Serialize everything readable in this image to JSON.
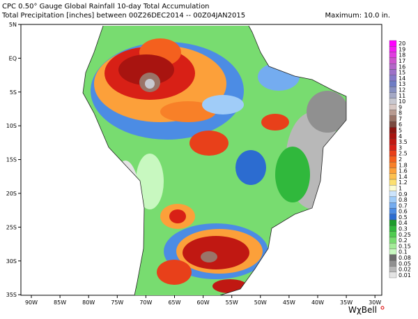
{
  "header": {
    "line1": "CPC 0.50° Gauge Global Rainfall 10-day Total Accumulation",
    "line2": "Total Precipitation [inches] between 00Z26DEC2014 -- 00Z04JAN2015",
    "maximum": "Maximum:  10.0 in."
  },
  "axes": {
    "lat_labels": [
      "5N",
      "EQ",
      "5S",
      "10S",
      "15S",
      "20S",
      "25S",
      "30S",
      "35S"
    ],
    "lon_labels": [
      "90W",
      "85W",
      "80W",
      "75W",
      "70W",
      "65W",
      "60W",
      "55W",
      "50W",
      "45W",
      "40W",
      "35W",
      "30W"
    ]
  },
  "colorbar": [
    {
      "label": "20",
      "color": "#ff00ff"
    },
    {
      "label": "19",
      "color": "#f21ef2"
    },
    {
      "label": "18",
      "color": "#e03ce0"
    },
    {
      "label": "17",
      "color": "#cc55cc"
    },
    {
      "label": "16",
      "color": "#b466c8"
    },
    {
      "label": "15",
      "color": "#9c70c8"
    },
    {
      "label": "14",
      "color": "#8478c8"
    },
    {
      "label": "13",
      "color": "#6e7cc4"
    },
    {
      "label": "12",
      "color": "#8890c0"
    },
    {
      "label": "11",
      "color": "#a4a8c4"
    },
    {
      "label": "10",
      "color": "#c8c8d0"
    },
    {
      "label": "9",
      "color": "#d8c8c4"
    },
    {
      "label": "8",
      "color": "#b89a90"
    },
    {
      "label": "7",
      "color": "#9a7468"
    },
    {
      "label": "6",
      "color": "#7a4a40"
    },
    {
      "label": "5",
      "color": "#8c1410"
    },
    {
      "label": "4",
      "color": "#a81410"
    },
    {
      "label": "3.5",
      "color": "#c01812"
    },
    {
      "label": "3",
      "color": "#d82016"
    },
    {
      "label": "2.5",
      "color": "#e8401a"
    },
    {
      "label": "2",
      "color": "#f4601e"
    },
    {
      "label": "1.8",
      "color": "#f88028"
    },
    {
      "label": "1.6",
      "color": "#fca03a"
    },
    {
      "label": "1.4",
      "color": "#fcc050"
    },
    {
      "label": "1.2",
      "color": "#fce070"
    },
    {
      "label": "1",
      "color": "#fcfcd0"
    },
    {
      "label": "0.9",
      "color": "#cce4fc"
    },
    {
      "label": "0.8",
      "color": "#a0ccf8"
    },
    {
      "label": "0.7",
      "color": "#74acf0"
    },
    {
      "label": "0.6",
      "color": "#4c8ce4"
    },
    {
      "label": "0.5",
      "color": "#2c6cd0"
    },
    {
      "label": "0.4",
      "color": "#1c9c2c"
    },
    {
      "label": "0.3",
      "color": "#30b83c"
    },
    {
      "label": "0.25",
      "color": "#50cc50"
    },
    {
      "label": "0.2",
      "color": "#78dc70"
    },
    {
      "label": "0.15",
      "color": "#a4ec98"
    },
    {
      "label": "0.1",
      "color": "#c8f8c0"
    },
    {
      "label": "0.08",
      "color": "#6c6c6c"
    },
    {
      "label": "0.05",
      "color": "#909090"
    },
    {
      "label": "0.02",
      "color": "#b8b8b8"
    },
    {
      "label": "0.01",
      "color": "#e4e4e4"
    }
  ],
  "logo": "WχBell"
}
